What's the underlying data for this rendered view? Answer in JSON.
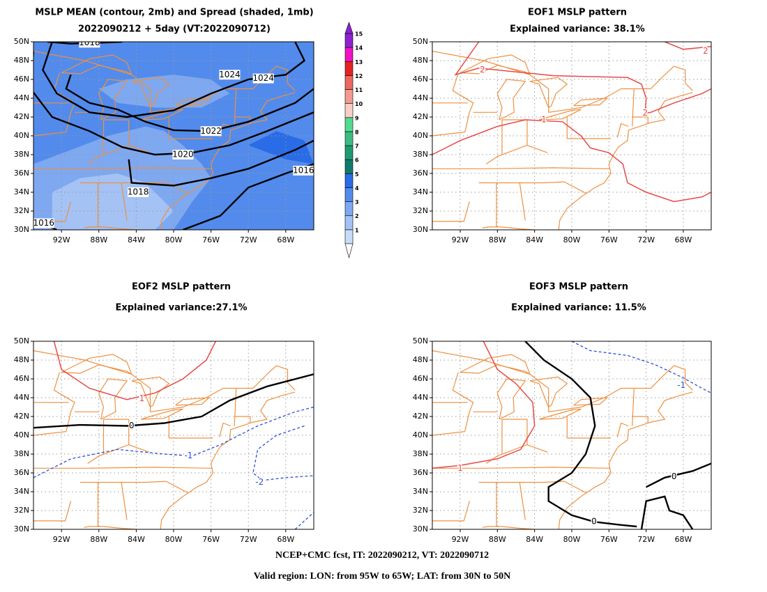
{
  "panels": [
    {
      "title": [
        "MSLP MEAN (contour, 2mb) and Spread (shaded, 1mb)",
        "2022090212 + 5day (VT:2022090712)"
      ],
      "contour_labels": [
        1018,
        1024,
        1024,
        1022,
        1020,
        1018,
        1016,
        1016
      ]
    },
    {
      "title": [
        "EOF1 MSLP pattern",
        "Explained variance: 38.1%"
      ],
      "contour_labels": [
        2,
        2,
        1,
        2
      ]
    },
    {
      "title": [
        "EOF2 MSLP pattern",
        "Explained variance:27.1%"
      ],
      "contour_labels": [
        1,
        0,
        -1,
        -2
      ]
    },
    {
      "title": [
        "EOF3 MSLP pattern",
        "Explained variance: 11.5%"
      ],
      "contour_labels": [
        1,
        0,
        0,
        -1
      ]
    }
  ],
  "lat_ticks": [
    "50N",
    "48N",
    "46N",
    "44N",
    "42N",
    "40N",
    "38N",
    "36N",
    "34N",
    "32N",
    "30N"
  ],
  "lon_ticks": [
    "92W",
    "88W",
    "84W",
    "80W",
    "76W",
    "72W",
    "68W"
  ],
  "colorbar": {
    "labels": [
      1,
      2,
      3,
      4,
      5,
      6,
      7,
      8,
      9,
      10,
      11,
      12,
      13,
      14,
      15
    ],
    "colors": [
      "#c8dcfa",
      "#a4c2f4",
      "#7ea8f0",
      "#528bec",
      "#2a6be6",
      "#107a6a",
      "#1e9a70",
      "#3cbc80",
      "#50dc90",
      "#f8cfc6",
      "#f29a92",
      "#ee6660",
      "#e62222",
      "#f012c4",
      "#8c22d0"
    ]
  },
  "footer": [
    "NCEP+CMC fcst, IT: 2022090212, VT: 2022090712",
    "Valid region: LON: from 95W to 65W; LAT: from 30N to 50N"
  ]
}
